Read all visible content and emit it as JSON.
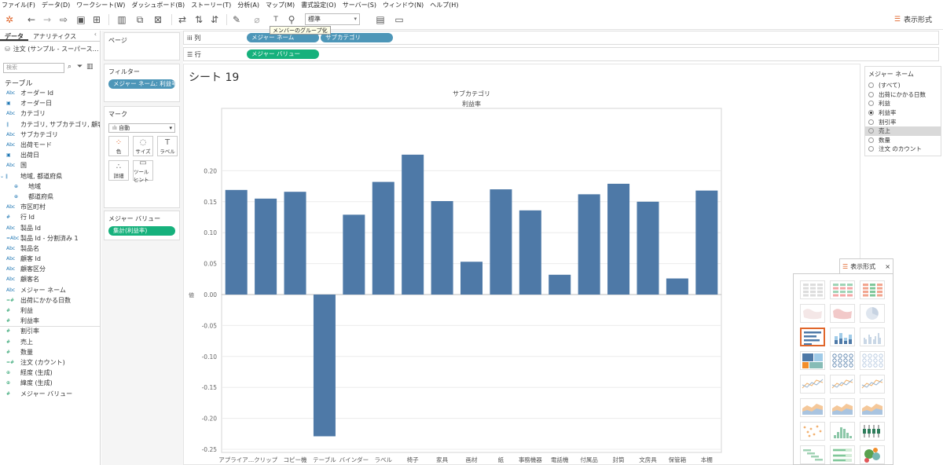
{
  "menu": [
    "ファイル(F)",
    "データ(D)",
    "ワークシート(W)",
    "ダッシュボード(B)",
    "ストーリー(T)",
    "分析(A)",
    "マップ(M)",
    "書式設定(O)",
    "サーバー(S)",
    "ウィンドウ(N)",
    "ヘルプ(H)"
  ],
  "toolbar": {
    "fit_select": "標準",
    "tooltip": "メンバーのグループ化",
    "show_me": "表示形式"
  },
  "datapane": {
    "tab_data": "データ",
    "tab_analytics": "アナリティクス",
    "datasource": "注文 (サンプル - スーパース…",
    "search_placeholder": "検索",
    "tables_header": "テーブル",
    "fields": [
      {
        "type": "Abc",
        "name": "オーダー Id",
        "kind": "dim"
      },
      {
        "type": "▣",
        "name": "オーダー日",
        "kind": "dim"
      },
      {
        "type": "Abc",
        "name": "カテゴリ",
        "kind": "dim"
      },
      {
        "type": "∥",
        "name": "カテゴリ, サブカテゴリ, 顧客区…",
        "kind": "dim"
      },
      {
        "type": "Abc",
        "name": "サブカテゴリ",
        "kind": "dim"
      },
      {
        "type": "Abc",
        "name": "出荷モード",
        "kind": "dim"
      },
      {
        "type": "▣",
        "name": "出荷日",
        "kind": "dim"
      },
      {
        "type": "Abc",
        "name": "国",
        "kind": "dim"
      },
      {
        "type": "⌄ ∥",
        "name": "地域, 都道府県",
        "kind": "dim",
        "exp": true
      },
      {
        "type": "⊕",
        "name": "地域",
        "kind": "dim",
        "sub": true
      },
      {
        "type": "⊕",
        "name": "都道府県",
        "kind": "dim",
        "sub": true
      },
      {
        "type": "Abc",
        "name": "市区町村",
        "kind": "dim"
      },
      {
        "type": "#",
        "name": "行 Id",
        "kind": "dim"
      },
      {
        "type": "Abc",
        "name": "製品 Id",
        "kind": "dim"
      },
      {
        "type": "=Abc",
        "name": "製品 Id - 分割済み 1",
        "kind": "dim"
      },
      {
        "type": "Abc",
        "name": "製品名",
        "kind": "dim"
      },
      {
        "type": "Abc",
        "name": "顧客 Id",
        "kind": "dim"
      },
      {
        "type": "Abc",
        "name": "顧客区分",
        "kind": "dim"
      },
      {
        "type": "Abc",
        "name": "顧客名",
        "kind": "dim"
      },
      {
        "type": "Abc",
        "name": "メジャー ネーム",
        "kind": "dim"
      },
      {
        "type": "=#",
        "name": "出荷にかかる日数",
        "kind": "meas"
      },
      {
        "type": "#",
        "name": "利益",
        "kind": "meas"
      },
      {
        "type": "#",
        "name": "利益率",
        "kind": "meas"
      },
      {
        "type": "#",
        "name": "割引率",
        "kind": "meas"
      },
      {
        "type": "#",
        "name": "売上",
        "kind": "meas"
      },
      {
        "type": "#",
        "name": "数量",
        "kind": "meas"
      },
      {
        "type": "=#",
        "name": "注文 (カウント)",
        "kind": "meas"
      },
      {
        "type": "⊕",
        "name": "経度 (生成)",
        "kind": "meas"
      },
      {
        "type": "⊕",
        "name": "緯度 (生成)",
        "kind": "meas"
      },
      {
        "type": "#",
        "name": "メジャー バリュー",
        "kind": "meas"
      }
    ]
  },
  "shelves": {
    "pages": "ページ",
    "filters": "フィルター",
    "filter_pill": "メジャー ネーム: 利益率",
    "marks": "マーク",
    "mark_type": "自動",
    "mark_buttons": [
      {
        "label": "色",
        "glyph": "⁘"
      },
      {
        "label": "サイズ",
        "glyph": "◌"
      },
      {
        "label": "ラベル",
        "glyph": "T"
      },
      {
        "label": "詳細",
        "glyph": "∴"
      },
      {
        "label": "ツールヒント",
        "glyph": "▭"
      }
    ],
    "measure_values": "メジャー バリュー",
    "mv_pill": "集計(利益率)",
    "columns_label": "列",
    "rows_label": "行",
    "col_pill_1": "メジャー ネーム",
    "col_pill_2": "サブカテゴリ",
    "row_pill": "メジャー バリュー"
  },
  "sheet": {
    "title": "シート 19",
    "header_top": "サブカテゴリ",
    "header_sub": "利益率",
    "y_axis_label": "値"
  },
  "legend": {
    "title": "メジャー ネーム",
    "options": [
      {
        "label": "(すべて)",
        "state": "none"
      },
      {
        "label": "出荷にかかる日数",
        "state": "none"
      },
      {
        "label": "利益",
        "state": "none"
      },
      {
        "label": "利益率",
        "state": "selected"
      },
      {
        "label": "割引率",
        "state": "none"
      },
      {
        "label": "売上",
        "state": "hover"
      },
      {
        "label": "数量",
        "state": "none"
      },
      {
        "label": "注文 のカウント",
        "state": "none"
      }
    ]
  },
  "colors": {
    "bar": "#4e79a7",
    "pill_blue": "#4d96b8",
    "pill_green": "#16b17c",
    "active_chart": "#e0662b"
  },
  "chart_data": {
    "type": "bar",
    "categories": [
      "アプライア…",
      "クリップ",
      "コピー機",
      "テーブル",
      "バインダー",
      "ラベル",
      "椅子",
      "家具",
      "画材",
      "紙",
      "事務機器",
      "電話機",
      "付属品",
      "封筒",
      "文房具",
      "保管箱",
      "本棚"
    ],
    "values": [
      0.169,
      0.155,
      0.166,
      -0.229,
      0.129,
      0.182,
      0.226,
      0.151,
      0.053,
      0.17,
      0.136,
      0.032,
      0.162,
      0.179,
      0.15,
      0.026,
      0.168
    ],
    "title": "",
    "xlabel": "サブカテゴリ",
    "ylabel": "値",
    "ylim": [
      -0.25,
      0.25
    ],
    "yticks": [
      0.2,
      0.15,
      0.1,
      0.05,
      0.0,
      -0.05,
      -0.1,
      -0.15,
      -0.2,
      -0.25
    ],
    "grid": true
  }
}
